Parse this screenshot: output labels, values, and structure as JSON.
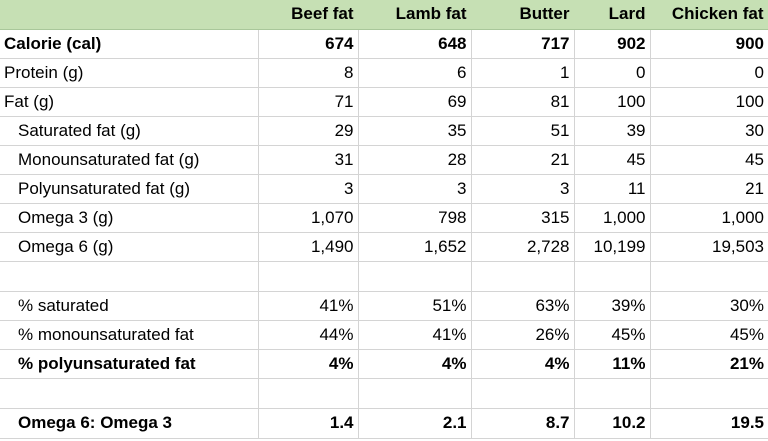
{
  "columns": [
    "",
    "Beef fat",
    "Lamb fat",
    "Butter",
    "Lard",
    "Chicken fat"
  ],
  "rows": [
    {
      "label": "Calorie (cal)",
      "values": [
        "674",
        "648",
        "717",
        "902",
        "900"
      ]
    },
    {
      "label": "Protein (g)",
      "values": [
        "8",
        "6",
        "1",
        "0",
        "0"
      ]
    },
    {
      "label": "Fat (g)",
      "values": [
        "71",
        "69",
        "81",
        "100",
        "100"
      ]
    },
    {
      "label": "Saturated fat (g)",
      "values": [
        "29",
        "35",
        "51",
        "39",
        "30"
      ]
    },
    {
      "label": "Monounsaturated fat (g)",
      "values": [
        "31",
        "28",
        "21",
        "45",
        "45"
      ]
    },
    {
      "label": "Polyunsaturated fat (g)",
      "values": [
        "3",
        "3",
        "3",
        "11",
        "21"
      ]
    },
    {
      "label": "Omega 3 (g)",
      "values": [
        "1,070",
        "798",
        "315",
        "1,000",
        "1,000"
      ]
    },
    {
      "label": "Omega 6 (g)",
      "values": [
        "1,490",
        "1,652",
        "2,728",
        "10,199",
        "19,503"
      ]
    },
    {
      "label": "",
      "values": [
        "",
        "",
        "",
        "",
        ""
      ]
    },
    {
      "label": "% saturated",
      "values": [
        "41%",
        "51%",
        "63%",
        "39%",
        "30%"
      ]
    },
    {
      "label": "% monounsaturated fat",
      "values": [
        "44%",
        "41%",
        "26%",
        "45%",
        "45%"
      ]
    },
    {
      "label": "% polyunsaturated fat",
      "values": [
        "4%",
        "4%",
        "4%",
        "11%",
        "21%"
      ]
    },
    {
      "label": "",
      "values": [
        "",
        "",
        "",
        "",
        ""
      ]
    },
    {
      "label": "Omega 6: Omega 3",
      "values": [
        "1.4",
        "2.1",
        "8.7",
        "10.2",
        "19.5"
      ]
    }
  ],
  "colors": {
    "header_background": "#c6e0b4",
    "grid_line": "#d4d4d4"
  }
}
